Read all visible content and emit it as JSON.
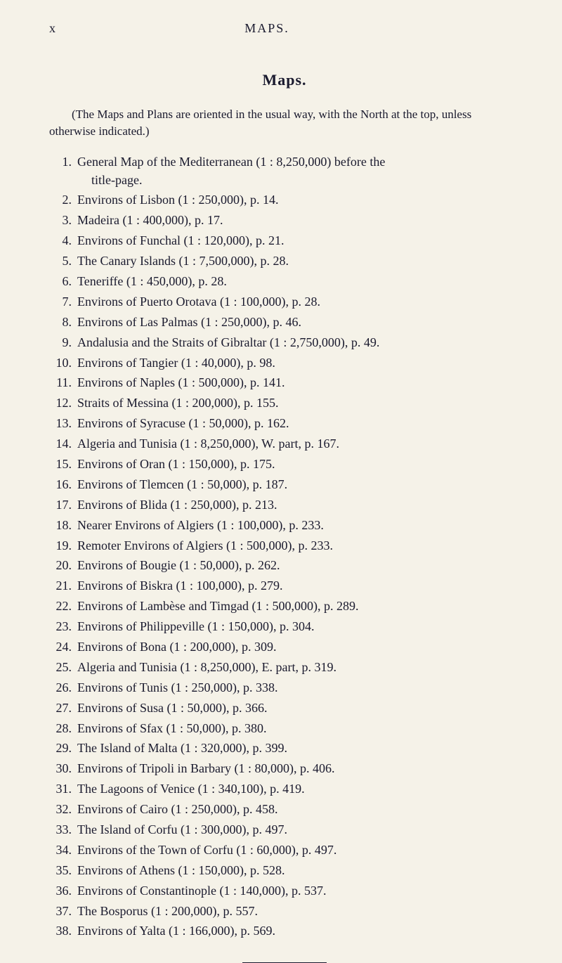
{
  "header": {
    "page_num": "x",
    "running_head": "MAPS."
  },
  "title": "Maps.",
  "intro": "(The Maps and Plans are oriented in the usual way, with the North at the top, unless otherwise indicated.)",
  "items": [
    {
      "n": "1.",
      "t": "General Map of the Mediterranean (1 : 8,250,000) before the",
      "cont": "title-page."
    },
    {
      "n": "2.",
      "t": "Environs of Lisbon (1 : 250,000), p. 14."
    },
    {
      "n": "3.",
      "t": "Madeira (1 : 400,000), p. 17."
    },
    {
      "n": "4.",
      "t": "Environs of Funchal (1 : 120,000), p. 21."
    },
    {
      "n": "5.",
      "t": "The Canary Islands (1 : 7,500,000), p. 28."
    },
    {
      "n": "6.",
      "t": "Teneriffe (1 : 450,000), p. 28."
    },
    {
      "n": "7.",
      "t": "Environs of Puerto Orotava (1 : 100,000), p. 28."
    },
    {
      "n": "8.",
      "t": "Environs of Las Palmas (1 : 250,000), p. 46."
    },
    {
      "n": "9.",
      "t": "Andalusia and the Straits of Gibraltar (1 : 2,750,000), p. 49."
    },
    {
      "n": "10.",
      "t": "Environs of Tangier (1 : 40,000), p. 98."
    },
    {
      "n": "11.",
      "t": "Environs of Naples (1 : 500,000), p. 141."
    },
    {
      "n": "12.",
      "t": "Straits of Messina (1 : 200,000), p. 155."
    },
    {
      "n": "13.",
      "t": "Environs of Syracuse (1 : 50,000), p. 162."
    },
    {
      "n": "14.",
      "t": "Algeria and Tunisia (1 : 8,250,000), W. part, p. 167."
    },
    {
      "n": "15.",
      "t": "Environs of Oran (1 : 150,000), p. 175."
    },
    {
      "n": "16.",
      "t": "Environs of Tlemcen (1 : 50,000), p. 187."
    },
    {
      "n": "17.",
      "t": "Environs of Blida (1 : 250,000), p. 213."
    },
    {
      "n": "18.",
      "t": "Nearer Environs of Algiers (1 : 100,000), p. 233."
    },
    {
      "n": "19.",
      "t": "Remoter Environs of Algiers (1 : 500,000), p. 233."
    },
    {
      "n": "20.",
      "t": "Environs of Bougie (1 : 50,000), p. 262."
    },
    {
      "n": "21.",
      "t": "Environs of Biskra (1 : 100,000), p. 279."
    },
    {
      "n": "22.",
      "t": "Environs of Lambèse and Timgad (1 : 500,000), p. 289."
    },
    {
      "n": "23.",
      "t": "Environs of Philippeville (1 : 150,000), p. 304."
    },
    {
      "n": "24.",
      "t": "Environs of Bona (1 : 200,000), p. 309."
    },
    {
      "n": "25.",
      "t": "Algeria and Tunisia (1 : 8,250,000), E. part, p. 319."
    },
    {
      "n": "26.",
      "t": "Environs of Tunis (1 : 250,000), p. 338."
    },
    {
      "n": "27.",
      "t": "Environs of Susa (1 : 50,000), p. 366."
    },
    {
      "n": "28.",
      "t": "Environs of Sfax (1 : 50,000), p. 380."
    },
    {
      "n": "29.",
      "t": "The Island of Malta (1 : 320,000), p. 399."
    },
    {
      "n": "30.",
      "t": "Environs of Tripoli in Barbary (1 : 80,000), p. 406."
    },
    {
      "n": "31.",
      "t": "The Lagoons of Venice (1 : 340,100), p. 419."
    },
    {
      "n": "32.",
      "t": "Environs of Cairo (1 : 250,000), p. 458."
    },
    {
      "n": "33.",
      "t": "The Island of Corfu (1 : 300,000), p. 497."
    },
    {
      "n": "34.",
      "t": "Environs of the Town of Corfu (1 : 60,000), p. 497."
    },
    {
      "n": "35.",
      "t": "Environs of Athens (1 : 150,000), p. 528."
    },
    {
      "n": "36.",
      "t": "Environs of Constantinople (1 : 140,000), p. 537."
    },
    {
      "n": "37.",
      "t": "The Bosporus (1 : 200,000), p. 557."
    },
    {
      "n": "38.",
      "t": "Environs of Yalta (1 : 166,000), p. 569."
    }
  ]
}
